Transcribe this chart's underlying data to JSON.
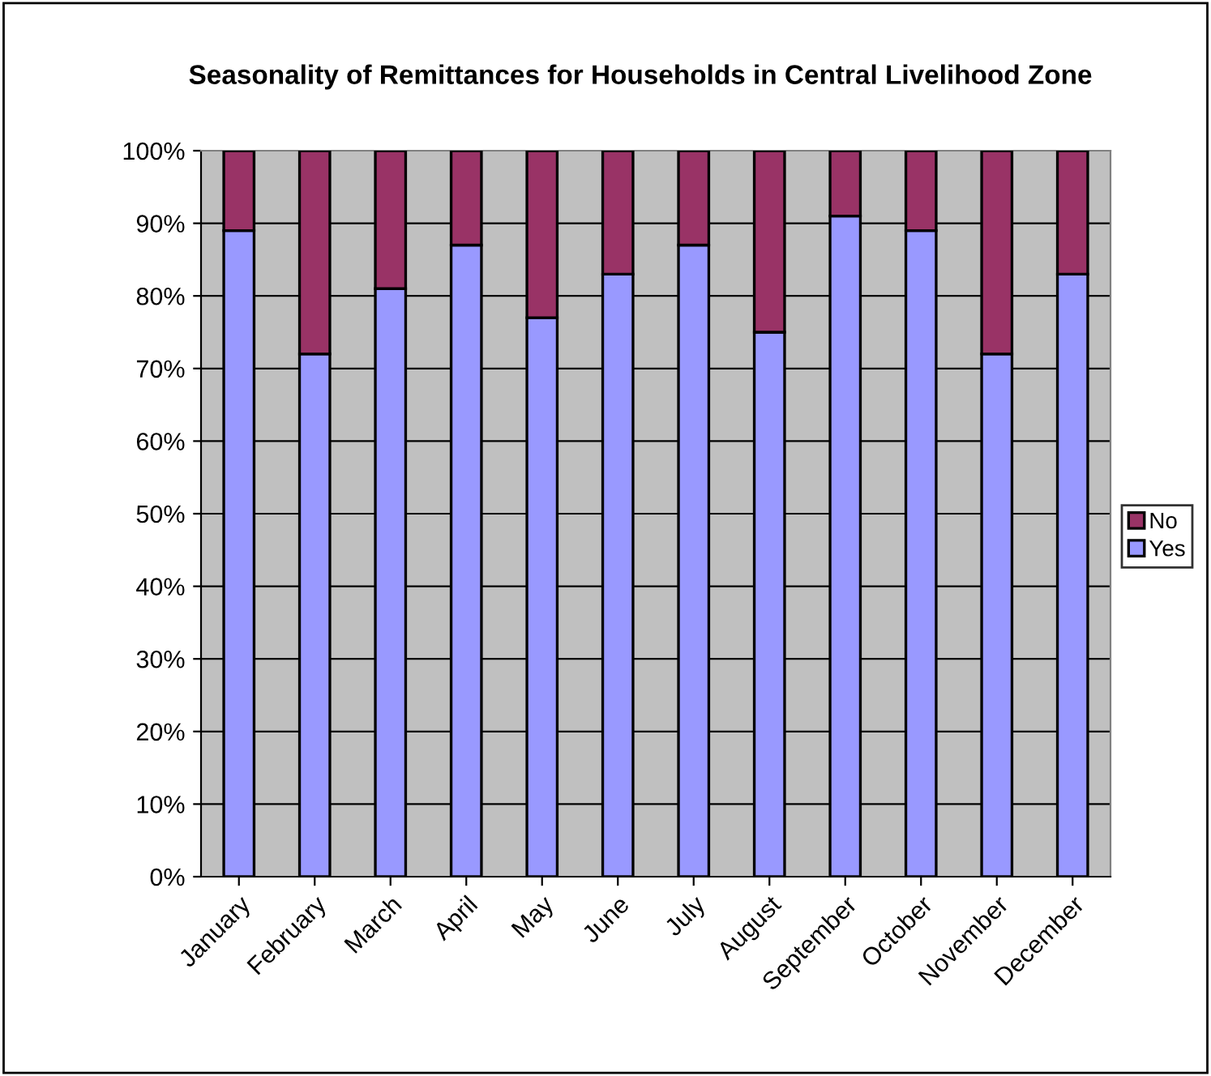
{
  "chart_data": {
    "type": "bar",
    "title": "Seasonality of Remittances for Households in Central Livelihood Zone",
    "categories": [
      "January",
      "February",
      "March",
      "April",
      "May",
      "June",
      "July",
      "August",
      "September",
      "October",
      "November",
      "December"
    ],
    "stacked": true,
    "series": [
      {
        "name": "Yes",
        "color": "#9999ff",
        "values": [
          89,
          72,
          81,
          87,
          77,
          83,
          87,
          75,
          91,
          89,
          72,
          83
        ]
      },
      {
        "name": "No",
        "color": "#993366",
        "values": [
          11,
          28,
          19,
          13,
          23,
          17,
          13,
          25,
          9,
          11,
          28,
          17
        ]
      }
    ],
    "ylim": [
      0,
      100
    ],
    "yticks": [
      {
        "value": 0,
        "label": "0%"
      },
      {
        "value": 10,
        "label": "10%"
      },
      {
        "value": 20,
        "label": "20%"
      },
      {
        "value": 30,
        "label": "30%"
      },
      {
        "value": 40,
        "label": "40%"
      },
      {
        "value": 50,
        "label": "50%"
      },
      {
        "value": 60,
        "label": "60%"
      },
      {
        "value": 70,
        "label": "70%"
      },
      {
        "value": 80,
        "label": "80%"
      },
      {
        "value": 90,
        "label": "90%"
      },
      {
        "value": 100,
        "label": "100%"
      }
    ],
    "grid": "y",
    "legend": "right"
  }
}
